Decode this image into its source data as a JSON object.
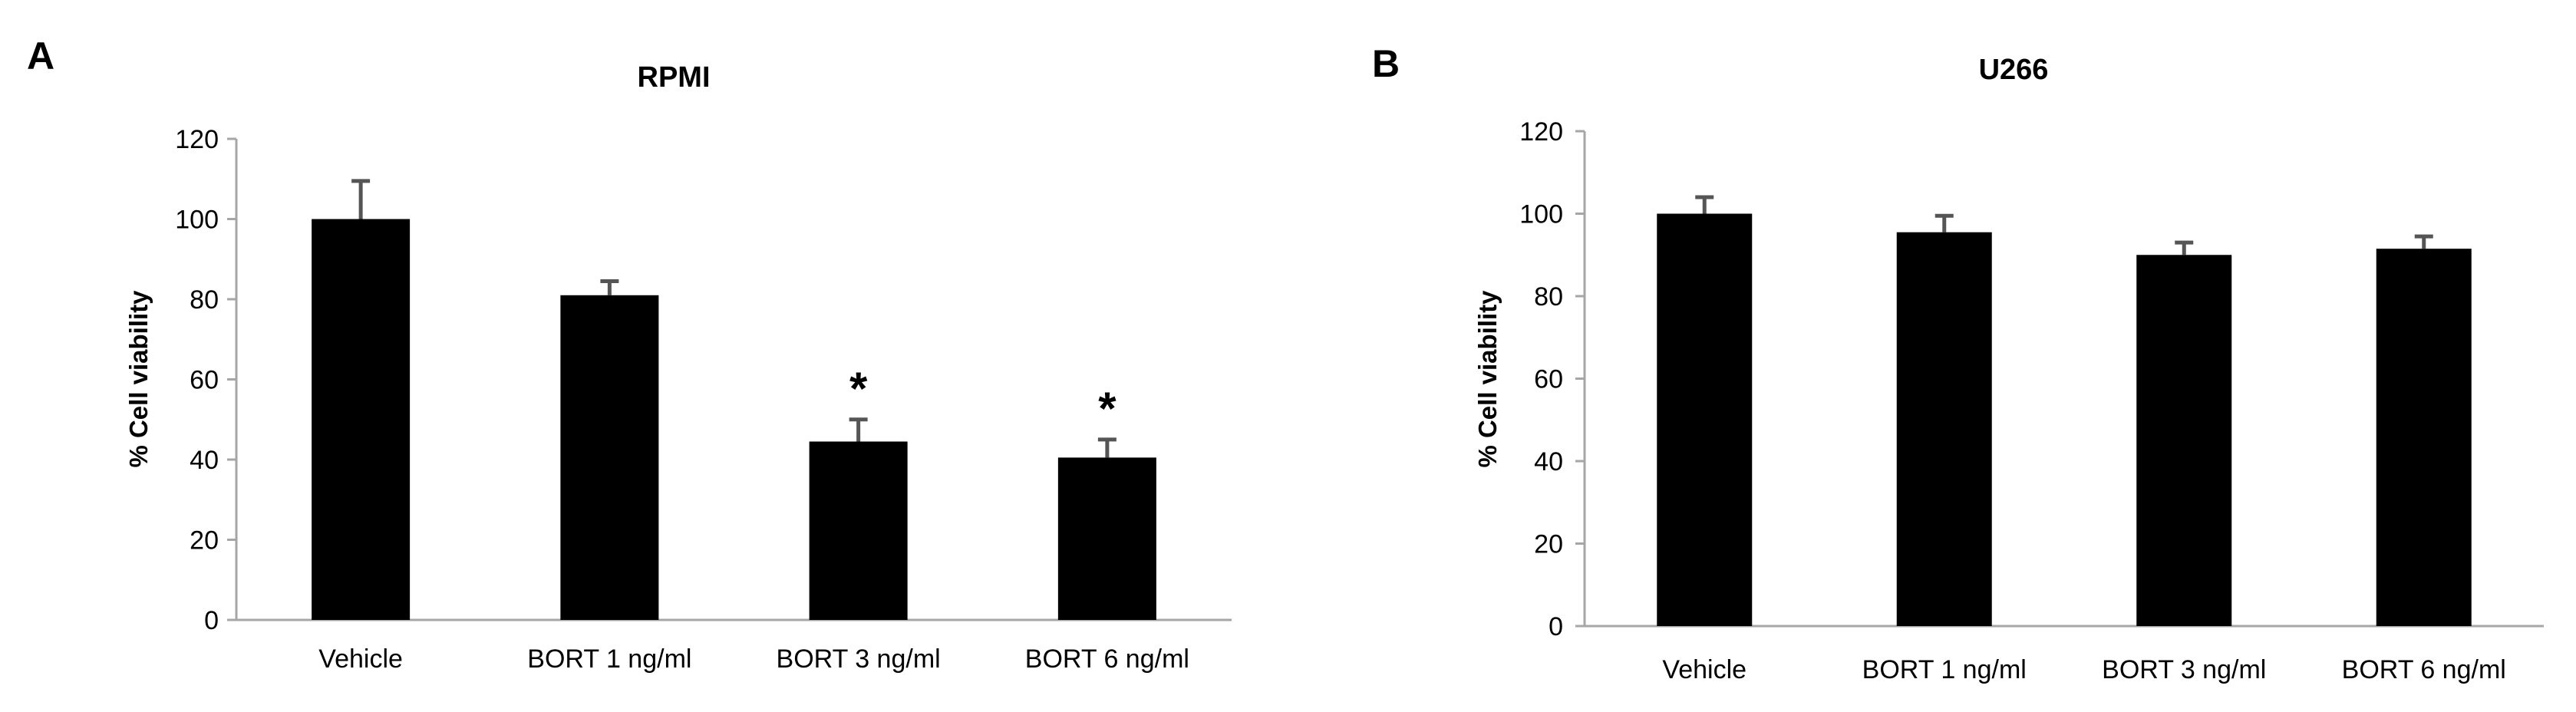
{
  "chart_data": [
    {
      "panel_label": "A",
      "type": "bar",
      "title": "RPMI",
      "xlabel": "",
      "ylabel": "% Cell viability",
      "ylim": [
        0,
        120
      ],
      "yticks": [
        0,
        20,
        40,
        60,
        80,
        100,
        120
      ],
      "grid": false,
      "categories": [
        "Vehicle",
        "BORT 1 ng/ml",
        "BORT 3 ng/ml",
        "BORT 6 ng/ml"
      ],
      "series": [
        {
          "name": "% Cell viability",
          "values": [
            100,
            81,
            44.5,
            40.5
          ],
          "errors": [
            9.5,
            3.5,
            5.5,
            4.5
          ]
        }
      ],
      "annotations": [
        "",
        "",
        "*",
        "*"
      ],
      "bar_color": "#000000",
      "axis_color": "#a6a6a6"
    },
    {
      "panel_label": "B",
      "type": "bar",
      "title": "U266",
      "xlabel": "",
      "ylabel": "% Cell viability",
      "ylim": [
        0,
        120
      ],
      "yticks": [
        0,
        20,
        40,
        60,
        80,
        100,
        120
      ],
      "grid": false,
      "categories": [
        "Vehicle",
        "BORT 1 ng/ml",
        "BORT 3 ng/ml",
        "BORT 6 ng/ml"
      ],
      "series": [
        {
          "name": "% Cell viability",
          "values": [
            100,
            95.5,
            90,
            91.5
          ],
          "errors": [
            4,
            4,
            3,
            3
          ]
        }
      ],
      "annotations": [
        "",
        "",
        "",
        ""
      ],
      "bar_color": "#000000",
      "axis_color": "#a6a6a6"
    }
  ]
}
